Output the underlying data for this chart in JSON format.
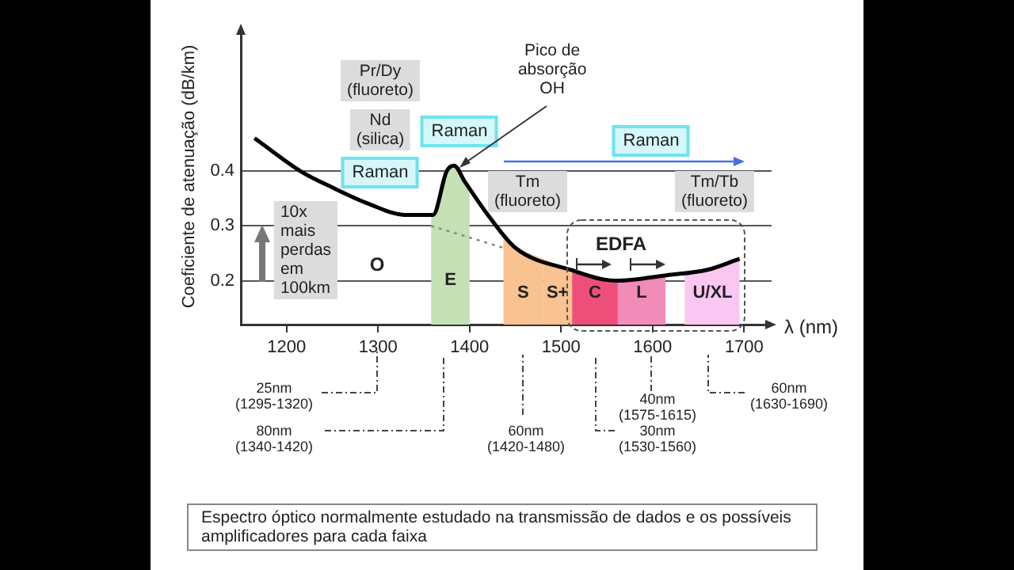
{
  "chart_data": {
    "type": "line",
    "xlabel": "λ (nm)",
    "ylabel": "Coeficiente de atenuação (dB/km)",
    "xlim": [
      1150,
      1730
    ],
    "xticks": [
      1200,
      1300,
      1400,
      1500,
      1600,
      1700
    ],
    "ylim": [
      0.12,
      0.66
    ],
    "yticks": [
      0.2,
      0.3,
      0.4
    ],
    "grid": "y",
    "legend": false,
    "marker": "none",
    "line_style": "solid",
    "series": [
      {
        "color": "#000000",
        "x": [
          1165,
          1215,
          1250,
          1290,
          1330,
          1350,
          1360,
          1375,
          1383,
          1395,
          1420,
          1450,
          1510,
          1560,
          1615,
          1660,
          1695
        ],
        "values": [
          0.46,
          0.4,
          0.37,
          0.34,
          0.32,
          0.32,
          0.32,
          0.4,
          0.41,
          0.38,
          0.32,
          0.26,
          0.22,
          0.2,
          0.21,
          0.22,
          0.24
        ]
      },
      {
        "color": "#888888",
        "line_style": "dotted",
        "x": [
          1358,
          1437
        ],
        "values": [
          0.3,
          0.26
        ]
      }
    ],
    "bands": [
      {
        "axis": "x",
        "from": 1358,
        "to": 1400,
        "label": "E",
        "color": "#c5e0b4"
      },
      {
        "axis": "x",
        "from": 1437,
        "to": 1480,
        "label": "S",
        "color": "#f8c291"
      },
      {
        "axis": "x",
        "from": 1480,
        "to": 1512,
        "label": "S+",
        "color": "#f8c291"
      },
      {
        "axis": "x",
        "from": 1512,
        "to": 1562,
        "label": "C",
        "color": "#ee4f7a"
      },
      {
        "axis": "x",
        "from": 1562,
        "to": 1614,
        "label": "L",
        "color": "#f38bb8"
      },
      {
        "axis": "x",
        "from": 1635,
        "to": 1696,
        "label": "U/XL",
        "color": "#f9c7f2"
      }
    ],
    "annotations": [
      "Pr/Dy\n(fluoreto)",
      "Nd\n(silica)",
      "Raman",
      "Raman",
      {
        "text": "Pico de\nabsorção\nOH",
        "x": 1383,
        "y": 0.41
      },
      "Raman",
      "Tm\n(fluoreto)",
      "Tm/Tb\n(fluoreto)",
      "10x\nmais\nperdas\nem\n100km",
      "O",
      "EDFA",
      "25nm\n(1295-1320)",
      "80nm\n(1340-1420)",
      "60nm\n(1420-1480)",
      "40nm\n(1575-1615)",
      "30nm\n(1530-1560)",
      "60nm\n(1630-1690)",
      "Espectro óptico normalmente estudado na transmissão de dados e os possíveis amplificadores para cada faixa"
    ]
  }
}
